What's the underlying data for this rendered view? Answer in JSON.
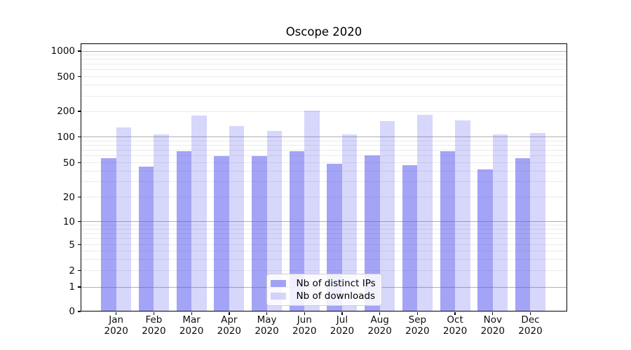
{
  "title": "Oscope 2020",
  "chart_data": {
    "type": "bar",
    "title": "Oscope 2020",
    "months": [
      "Jan",
      "Feb",
      "Mar",
      "Apr",
      "May",
      "Jun",
      "Jul",
      "Aug",
      "Sep",
      "Oct",
      "Nov",
      "Dec"
    ],
    "year": "2020",
    "categories": [
      "Jan 2020",
      "Feb 2020",
      "Mar 2020",
      "Apr 2020",
      "May 2020",
      "Jun 2020",
      "Jul 2020",
      "Aug 2020",
      "Sep 2020",
      "Oct 2020",
      "Nov 2020",
      "Dec 2020"
    ],
    "series": [
      {
        "name": "Nb of distinct IPs",
        "color": "rgba(80,80,238,0.52)",
        "values": [
          56,
          45,
          68,
          60,
          60,
          68,
          49,
          61,
          47,
          68,
          42,
          56
        ]
      },
      {
        "name": "Nb of downloads",
        "color": "rgba(80,80,238,0.23)",
        "values": [
          130,
          106,
          178,
          134,
          118,
          203,
          106,
          152,
          181,
          156,
          107,
          111
        ]
      }
    ],
    "y_axis": {
      "scale": "log-with-zero-baseline",
      "tick_values": [
        0,
        1,
        2,
        5,
        10,
        20,
        50,
        100,
        200,
        500,
        1000
      ],
      "tick_labels": [
        "0",
        "1",
        "2",
        "5",
        "10",
        "20",
        "50",
        "100",
        "200",
        "500",
        "1000"
      ],
      "range": [
        0,
        1000
      ]
    },
    "grid": {
      "enabled": true,
      "major_values": [
        1,
        10,
        100,
        1000
      ],
      "major_color": "#b0b0b0",
      "minor_color": "#ebebeb"
    },
    "legend": {
      "position": "bottom-center-inside",
      "items": [
        "Nb of distinct IPs",
        "Nb of downloads"
      ]
    },
    "colors": {
      "bar_dark": "#a7a7f1",
      "bar_light": "#d9d9f8",
      "axis": "#000000",
      "background": "#ffffff"
    }
  }
}
